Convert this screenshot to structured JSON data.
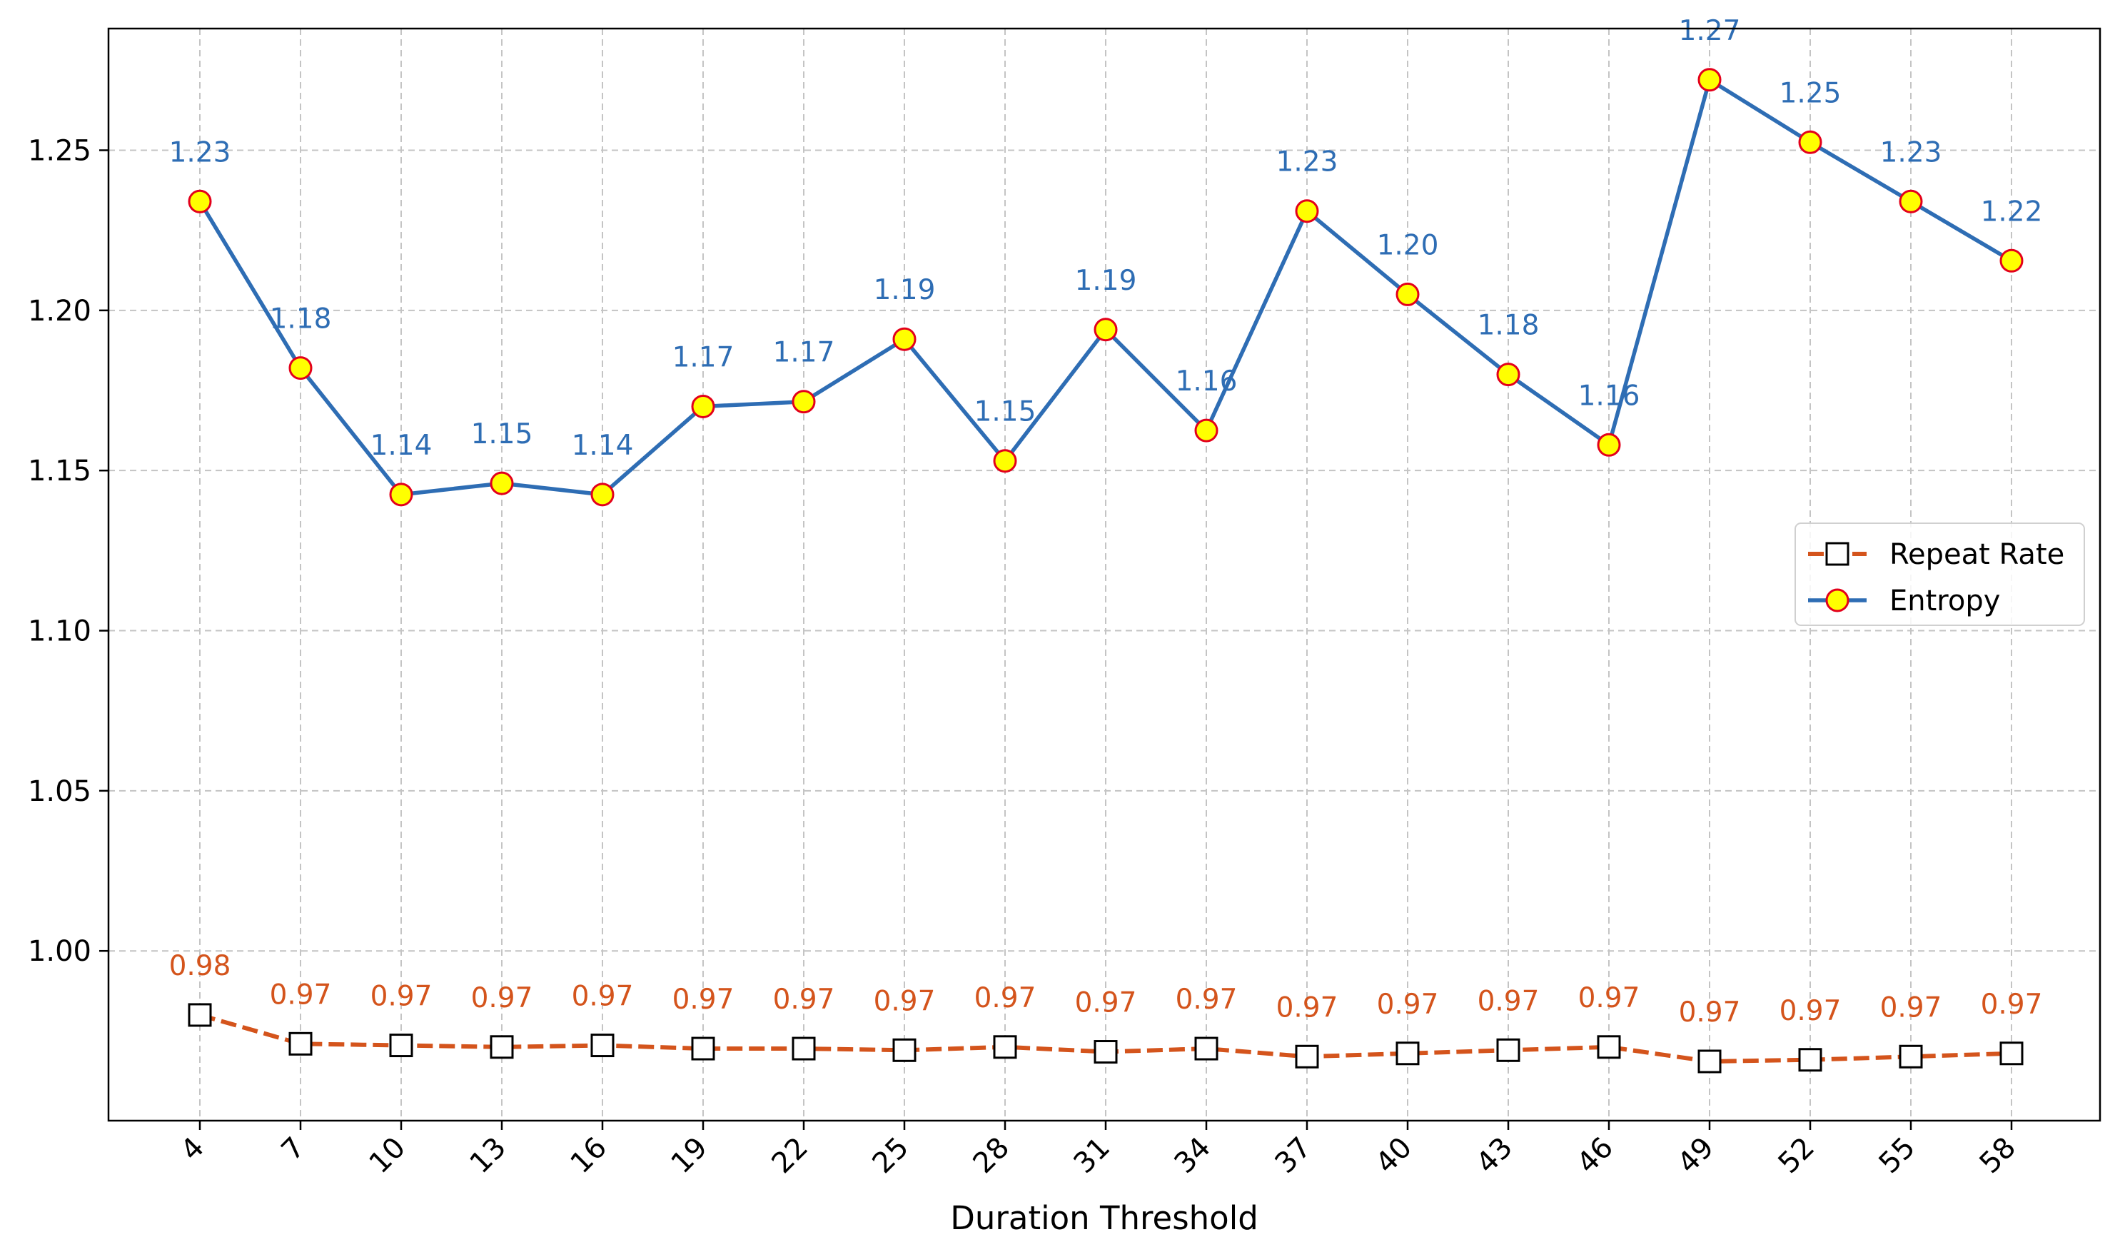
{
  "chart_data": {
    "type": "line",
    "x": [
      4,
      7,
      10,
      13,
      16,
      19,
      22,
      25,
      28,
      31,
      34,
      37,
      40,
      43,
      46,
      49,
      52,
      55,
      58
    ],
    "xlabel": "Duration Threshold",
    "ylabel": "",
    "title": "",
    "ylim": [
      0.947,
      1.288
    ],
    "yticks": [
      1.0,
      1.05,
      1.1,
      1.15,
      1.2,
      1.25
    ],
    "ytick_labels": [
      "1.00",
      "1.05",
      "1.10",
      "1.15",
      "1.20",
      "1.25"
    ],
    "grid": true,
    "legend_position": "center-right",
    "series": [
      {
        "name": "Repeat Rate",
        "color": "#d4541c",
        "line_style": "dashed",
        "marker": "square",
        "marker_face": "#ffffff",
        "marker_edge": "#000000",
        "values": [
          0.98,
          0.971,
          0.9705,
          0.97,
          0.9705,
          0.9695,
          0.9695,
          0.969,
          0.97,
          0.9685,
          0.9695,
          0.967,
          0.968,
          0.969,
          0.97,
          0.9655,
          0.966,
          0.967,
          0.968
        ],
        "labels": [
          "0.98",
          "0.97",
          "0.97",
          "0.97",
          "0.97",
          "0.97",
          "0.97",
          "0.97",
          "0.97",
          "0.97",
          "0.97",
          "0.97",
          "0.97",
          "0.97",
          "0.97",
          "0.97",
          "0.97",
          "0.97",
          "0.97"
        ]
      },
      {
        "name": "Entropy",
        "color": "#2e6db4",
        "line_style": "solid",
        "marker": "circle",
        "marker_face": "#ffff00",
        "marker_edge": "#e3001b",
        "values": [
          1.234,
          1.182,
          1.1425,
          1.146,
          1.1425,
          1.17,
          1.1715,
          1.191,
          1.153,
          1.194,
          1.1625,
          1.231,
          1.205,
          1.18,
          1.158,
          1.272,
          1.2525,
          1.234,
          1.2155
        ],
        "labels": [
          "1.23",
          "1.18",
          "1.14",
          "1.15",
          "1.14",
          "1.17",
          "1.17",
          "1.19",
          "1.15",
          "1.19",
          "1.16",
          "1.23",
          "1.20",
          "1.18",
          "1.16",
          "1.27",
          "1.25",
          "1.23",
          "1.22"
        ]
      }
    ]
  }
}
